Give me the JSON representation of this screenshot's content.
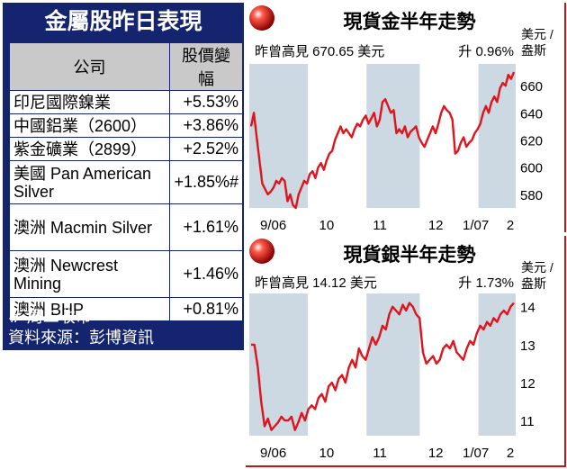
{
  "table": {
    "title": "金屬股昨日表現",
    "headers": [
      "公司",
      "股價變幅"
    ],
    "rows": [
      {
        "name": "印尼國際鎳業",
        "change": "+5.53%"
      },
      {
        "name": "中國鋁業（2600）",
        "change": "+3.86%"
      },
      {
        "name": "紫金礦業（2899）",
        "change": "+2.52%"
      },
      {
        "name": "美國 Pan American Silver",
        "change": "+1.85%#"
      },
      {
        "name": "澳洲 Macmin Silver",
        "change": "+1.61%"
      },
      {
        "name": "澳洲 Newcrest Mining",
        "change": "+1.46%"
      },
      {
        "name": "澳洲 BHP",
        "change": "+0.81%"
      }
    ],
    "footnotes": [
      "# 周二收市",
      "資料來源：彭博資訊"
    ]
  },
  "colors": {
    "panel": "#14246e",
    "line": "#e0141c",
    "band": "#ccd8e2",
    "border": "#c4141a"
  },
  "chart_data": [
    {
      "type": "line",
      "title": "現貨金半年走勢",
      "subtitle_left": "昨曾高見 670.65 美元",
      "subtitle_right": "升 0.96%",
      "unit": [
        "美元 /",
        "盎斯"
      ],
      "x_labels": [
        "9/06",
        "10",
        "11",
        "12",
        "1/07",
        "2"
      ],
      "y_ticks": [
        580,
        600,
        620,
        640,
        660
      ],
      "ylim": [
        570,
        676
      ],
      "series": [
        {
          "values": [
            630,
            640,
            622,
            605,
            588,
            584,
            580,
            582,
            585,
            590,
            588,
            592,
            590,
            575,
            580,
            572,
            570,
            580,
            585,
            590,
            588,
            595,
            597,
            592,
            600,
            603,
            598,
            605,
            610,
            612,
            620,
            625,
            630,
            625,
            628,
            625,
            622,
            628,
            632,
            630,
            635,
            638,
            632,
            636,
            640,
            630,
            635,
            648,
            650,
            645,
            640,
            642,
            625,
            628,
            625,
            630,
            622,
            626,
            628,
            630,
            622,
            618,
            615,
            620,
            625,
            630,
            625,
            632,
            640,
            645,
            642,
            640,
            635,
            610,
            612,
            618,
            622,
            615,
            618,
            620,
            625,
            628,
            632,
            640,
            645,
            640,
            648,
            652,
            648,
            658,
            662,
            660,
            668,
            665,
            670
          ]
        }
      ]
    },
    {
      "type": "line",
      "title": "現貨銀半年走勢",
      "subtitle_left": "昨曾高見 14.12 美元",
      "subtitle_right": "升 1.73%",
      "unit": [
        "美元 /",
        "盎斯"
      ],
      "x_labels": [
        "9/06",
        "10",
        "11",
        "12",
        "1/07",
        "2"
      ],
      "y_ticks": [
        11,
        12,
        13,
        14
      ],
      "ylim": [
        10.6,
        14.35
      ],
      "series": [
        {
          "values": [
            13.0,
            13.0,
            12.4,
            11.5,
            10.85,
            11.05,
            10.75,
            10.85,
            10.95,
            11.1,
            11.0,
            11.0,
            11.1,
            10.75,
            10.95,
            11.2,
            11.0,
            11.3,
            11.4,
            11.3,
            11.6,
            11.7,
            11.5,
            11.9,
            12.0,
            11.8,
            12.1,
            12.2,
            12.0,
            12.4,
            12.6,
            12.4,
            12.9,
            12.7,
            12.6,
            12.9,
            13.2,
            13.0,
            13.2,
            13.5,
            13.4,
            13.8,
            14.0,
            13.9,
            13.8,
            14.05,
            13.9,
            14.1,
            14.0,
            13.8,
            13.7,
            12.8,
            12.5,
            12.6,
            12.7,
            12.5,
            12.6,
            12.9,
            13.0,
            12.9,
            13.1,
            12.8,
            12.7,
            12.6,
            12.9,
            13.1,
            13.0,
            13.3,
            13.5,
            13.4,
            13.6,
            13.5,
            13.7,
            13.6,
            13.8,
            13.9,
            13.8,
            14.0,
            14.1
          ]
        }
      ]
    }
  ]
}
